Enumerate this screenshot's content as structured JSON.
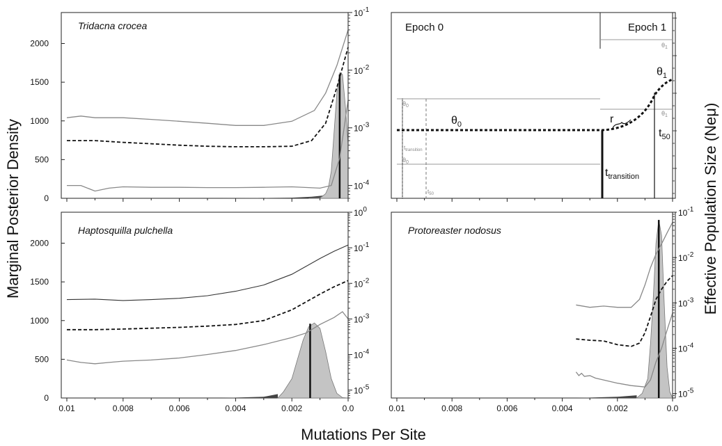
{
  "figure": {
    "y_left_title": "Marginal Posterior Density",
    "y_right_title": "Effective Population Size (Neμ)",
    "x_title": "Mutations Per Site"
  },
  "chart_data": [
    {
      "id": "tl",
      "type": "area",
      "title": "Tridacna crocea",
      "x_range": [
        0.01,
        0.0
      ],
      "x_reversed": true,
      "x_ticks": [
        0.01,
        0.008,
        0.006,
        0.004,
        0.002,
        0.0
      ],
      "left_ylim": [
        0,
        2400
      ],
      "left_ticks": [
        0,
        500,
        1000,
        1500,
        2000
      ],
      "right_scale": "log",
      "right_ylim": [
        6e-05,
        0.1
      ],
      "right_ticks": [
        {
          "v": 0.0001,
          "base": "10",
          "exp": "-4"
        },
        {
          "v": 0.001,
          "base": "10",
          "exp": "-3"
        },
        {
          "v": 0.01,
          "base": "10",
          "exp": "-2"
        },
        {
          "v": 0.1,
          "base": "10",
          "exp": "-1"
        }
      ],
      "series": [
        {
          "role": "upper",
          "style": "solid-gray",
          "points": [
            [
              0.01,
              0.0015
            ],
            [
              0.0095,
              0.0016
            ],
            [
              0.009,
              0.0015
            ],
            [
              0.008,
              0.0015
            ],
            [
              0.007,
              0.0014
            ],
            [
              0.006,
              0.0013
            ],
            [
              0.005,
              0.0012
            ],
            [
              0.004,
              0.0011
            ],
            [
              0.003,
              0.0011
            ],
            [
              0.002,
              0.0013
            ],
            [
              0.0012,
              0.002
            ],
            [
              0.0008,
              0.004
            ],
            [
              0.0004,
              0.012
            ],
            [
              0.0,
              0.05
            ]
          ]
        },
        {
          "role": "median",
          "style": "dashed",
          "points": [
            [
              0.01,
              0.0006
            ],
            [
              0.009,
              0.0006
            ],
            [
              0.008,
              0.00056
            ],
            [
              0.007,
              0.00053
            ],
            [
              0.006,
              0.0005
            ],
            [
              0.005,
              0.00048
            ],
            [
              0.004,
              0.00047
            ],
            [
              0.003,
              0.00047
            ],
            [
              0.002,
              0.00048
            ],
            [
              0.0013,
              0.0006
            ],
            [
              0.0008,
              0.0012
            ],
            [
              0.0004,
              0.005
            ],
            [
              0.0,
              0.025
            ]
          ]
        },
        {
          "role": "lower",
          "style": "solid-gray",
          "points": [
            [
              0.01,
              0.0001
            ],
            [
              0.0095,
              0.0001
            ],
            [
              0.009,
              8e-05
            ],
            [
              0.0085,
              9e-05
            ],
            [
              0.008,
              9.5e-05
            ],
            [
              0.007,
              9.3e-05
            ],
            [
              0.006,
              9.3e-05
            ],
            [
              0.005,
              9.2e-05
            ],
            [
              0.004,
              9.2e-05
            ],
            [
              0.003,
              9.3e-05
            ],
            [
              0.002,
              9.5e-05
            ],
            [
              0.001,
              9e-05
            ],
            [
              0.0006,
              0.0001
            ],
            [
              0.0003,
              0.0003
            ],
            [
              0.0,
              0.003
            ]
          ]
        }
      ],
      "density": [
        [
          0.0014,
          0
        ],
        [
          0.001,
          5
        ],
        [
          0.0009,
          30
        ],
        [
          0.0008,
          60
        ],
        [
          0.0007,
          140
        ],
        [
          0.0006,
          350
        ],
        [
          0.0005,
          850
        ],
        [
          0.0004,
          1350
        ],
        [
          0.0003,
          1620
        ],
        [
          0.0002,
          1600
        ],
        [
          0.0001,
          1200
        ],
        [
          0.0,
          700
        ]
      ],
      "dark_tail": [
        [
          0.0045,
          0
        ],
        [
          0.002,
          8
        ],
        [
          0.0013,
          20
        ],
        [
          0.0009,
          35
        ]
      ],
      "median_line": {
        "x": 0.0003,
        "y": 1600
      }
    },
    {
      "id": "bl",
      "type": "area",
      "title": "Haptosquilla pulchella",
      "x_range": [
        0.01,
        0.0
      ],
      "x_reversed": true,
      "x_ticks": [
        0.01,
        0.008,
        0.006,
        0.004,
        0.002,
        0.0
      ],
      "x_tick_labels": [
        "0.01",
        "0.008",
        "0.006",
        "0.004",
        "0.002",
        "0.0"
      ],
      "left_ylim": [
        0,
        2400
      ],
      "left_ticks": [
        0,
        500,
        1000,
        1500,
        2000
      ],
      "right_scale": "log",
      "right_ylim": [
        6e-06,
        1
      ],
      "right_ticks": [
        {
          "v": 1e-05,
          "base": "10",
          "exp": "-5"
        },
        {
          "v": 0.0001,
          "base": "10",
          "exp": "-4"
        },
        {
          "v": 0.001,
          "base": "10",
          "exp": "-3"
        },
        {
          "v": 0.01,
          "base": "10",
          "exp": "-2"
        },
        {
          "v": 0.1,
          "base": "10",
          "exp": "-1"
        },
        {
          "v": 1,
          "base": "10",
          "exp": "0"
        }
      ],
      "series": [
        {
          "role": "upper",
          "style": "solid-dark",
          "points": [
            [
              0.01,
              0.0035
            ],
            [
              0.009,
              0.0036
            ],
            [
              0.008,
              0.0033
            ],
            [
              0.007,
              0.0035
            ],
            [
              0.006,
              0.0038
            ],
            [
              0.005,
              0.0045
            ],
            [
              0.004,
              0.006
            ],
            [
              0.003,
              0.009
            ],
            [
              0.002,
              0.018
            ],
            [
              0.0015,
              0.03
            ],
            [
              0.001,
              0.05
            ],
            [
              0.0005,
              0.08
            ],
            [
              0.0,
              0.12
            ]
          ]
        },
        {
          "role": "median",
          "style": "dashed",
          "points": [
            [
              0.01,
              0.0005
            ],
            [
              0.009,
              0.0005
            ],
            [
              0.008,
              0.00052
            ],
            [
              0.007,
              0.00055
            ],
            [
              0.006,
              0.00058
            ],
            [
              0.005,
              0.00063
            ],
            [
              0.004,
              0.0007
            ],
            [
              0.003,
              0.0009
            ],
            [
              0.002,
              0.0018
            ],
            [
              0.0015,
              0.003
            ],
            [
              0.001,
              0.005
            ],
            [
              0.0005,
              0.008
            ],
            [
              0.0,
              0.012
            ]
          ]
        },
        {
          "role": "lower",
          "style": "solid-gray",
          "points": [
            [
              0.01,
              7e-05
            ],
            [
              0.0095,
              6e-05
            ],
            [
              0.009,
              5.5e-05
            ],
            [
              0.0085,
              6e-05
            ],
            [
              0.008,
              6.5e-05
            ],
            [
              0.007,
              7e-05
            ],
            [
              0.006,
              8e-05
            ],
            [
              0.005,
              0.0001
            ],
            [
              0.004,
              0.00013
            ],
            [
              0.003,
              0.00019
            ],
            [
              0.002,
              0.0003
            ],
            [
              0.0015,
              0.0004
            ],
            [
              0.001,
              0.0007
            ],
            [
              0.0005,
              0.0011
            ],
            [
              0.0002,
              0.0016
            ],
            [
              0.0,
              0.001
            ]
          ]
        }
      ],
      "density": [
        [
          0.0025,
          0
        ],
        [
          0.0023,
          80
        ],
        [
          0.002,
          250
        ],
        [
          0.0018,
          500
        ],
        [
          0.0016,
          750
        ],
        [
          0.0014,
          920
        ],
        [
          0.0012,
          970
        ],
        [
          0.001,
          900
        ],
        [
          0.0008,
          600
        ],
        [
          0.0006,
          250
        ],
        [
          0.0004,
          60
        ],
        [
          0.0002,
          5
        ],
        [
          0.0,
          0
        ]
      ],
      "dark_tail": [
        [
          0.0045,
          0
        ],
        [
          0.003,
          15
        ],
        [
          0.0025,
          50
        ]
      ],
      "median_line": {
        "x": 0.00135,
        "y": 960
      }
    },
    {
      "id": "br",
      "type": "area",
      "title": "Protoreaster nodosus",
      "x_range": [
        0.01,
        0.0
      ],
      "x_reversed": true,
      "x_ticks": [
        0.01,
        0.008,
        0.006,
        0.004,
        0.002,
        0.0
      ],
      "x_tick_labels": [
        "0.01",
        "0.008",
        "0.006",
        "0.004",
        "0.002",
        "0.0"
      ],
      "left_ylim": [
        0,
        2400
      ],
      "right_scale": "log",
      "right_ylim": [
        8e-06,
        0.1
      ],
      "right_ticks": [
        {
          "v": 1e-05,
          "base": "10",
          "exp": "-5"
        },
        {
          "v": 0.0001,
          "base": "10",
          "exp": "-4"
        },
        {
          "v": 0.001,
          "base": "10",
          "exp": "-3"
        },
        {
          "v": 0.01,
          "base": "10",
          "exp": "-2"
        },
        {
          "v": 0.1,
          "base": "10",
          "exp": "-1"
        }
      ],
      "series": [
        {
          "role": "upper",
          "style": "solid-gray",
          "points": [
            [
              0.0035,
              0.0009
            ],
            [
              0.003,
              0.0008
            ],
            [
              0.0025,
              0.00085
            ],
            [
              0.002,
              0.0008
            ],
            [
              0.0015,
              0.0008
            ],
            [
              0.0012,
              0.0012
            ],
            [
              0.001,
              0.0025
            ],
            [
              0.0008,
              0.006
            ],
            [
              0.0006,
              0.012
            ],
            [
              0.0004,
              0.02
            ],
            [
              0.0002,
              0.035
            ],
            [
              0.0,
              0.06
            ]
          ]
        },
        {
          "role": "median",
          "style": "dashed",
          "points": [
            [
              0.0035,
              0.00016
            ],
            [
              0.003,
              0.00015
            ],
            [
              0.0025,
              0.000145
            ],
            [
              0.002,
              0.00012
            ],
            [
              0.0015,
              0.00011
            ],
            [
              0.0012,
              0.00013
            ],
            [
              0.001,
              0.00022
            ],
            [
              0.0008,
              0.0005
            ],
            [
              0.0006,
              0.0012
            ],
            [
              0.0004,
              0.002
            ],
            [
              0.0002,
              0.003
            ],
            [
              0.0,
              0.004
            ]
          ]
        },
        {
          "role": "lower",
          "style": "solid-gray",
          "points": [
            [
              0.0035,
              3e-05
            ],
            [
              0.0034,
              2.5e-05
            ],
            [
              0.0033,
              2.8e-05
            ],
            [
              0.0032,
              2.4e-05
            ],
            [
              0.003,
              2.5e-05
            ],
            [
              0.0028,
              2.2e-05
            ],
            [
              0.0025,
              2e-05
            ],
            [
              0.002,
              1.7e-05
            ],
            [
              0.0015,
              1.5e-05
            ],
            [
              0.001,
              1.4e-05
            ],
            [
              0.0008,
              2e-05
            ],
            [
              0.0006,
              5e-05
            ],
            [
              0.0004,
              0.0001
            ],
            [
              0.0002,
              0.00025
            ],
            [
              0.0,
              0.0006
            ]
          ]
        }
      ],
      "density": [
        [
          0.0013,
          0
        ],
        [
          0.0011,
          60
        ],
        [
          0.0009,
          250
        ],
        [
          0.0008,
          700
        ],
        [
          0.0007,
          1300
        ],
        [
          0.0006,
          2000
        ],
        [
          0.0005,
          2300
        ],
        [
          0.0004,
          2100
        ],
        [
          0.0003,
          1200
        ],
        [
          0.0002,
          400
        ],
        [
          0.0001,
          80
        ],
        [
          0.0,
          0
        ]
      ],
      "dark_tail": [
        [
          0.0035,
          0
        ],
        [
          0.002,
          15
        ],
        [
          0.0013,
          35
        ]
      ],
      "median_line": {
        "x": 0.0005,
        "y": 2300
      }
    }
  ],
  "schematic": {
    "epoch0_label": "Epoch 0",
    "epoch1_label": "Epoch 1",
    "theta0": "θ",
    "theta0_sub": "0",
    "theta1": "θ",
    "theta1_sub": "1",
    "r_label": "r",
    "t50": "t",
    "t50_sub": "50",
    "t_transition": "t",
    "t_transition_sub": "transition",
    "small_theta0_upper": "θ",
    "small_theta0_upper_sub": "0",
    "small_theta0_lower": "θ",
    "small_theta0_lower_sub": "0",
    "small_theta1_upper": "θ",
    "small_theta1_upper_sub": "1",
    "small_theta1_lower": "θ",
    "small_theta1_lower_sub": "1",
    "small_t_transition": "t",
    "small_t_transition_sub": "transition",
    "small_t50": "t",
    "small_t50_sub": "50"
  }
}
